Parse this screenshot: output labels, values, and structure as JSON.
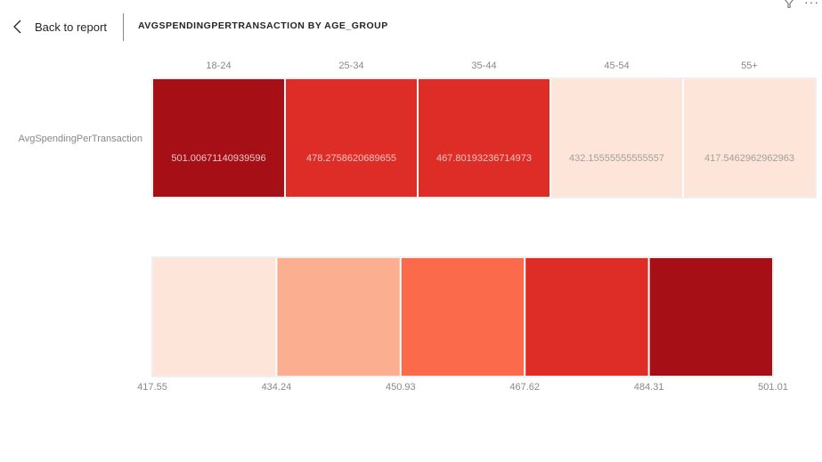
{
  "header": {
    "back_label": "Back to report",
    "title": "AVGSPENDINGPERTRANSACTION BY AGE_GROUP",
    "back_icon": "chevron-left-icon",
    "filter_icon": "filter-icon",
    "more_icon": "more-options-icon",
    "more_glyph": "···"
  },
  "chart_data": [
    {
      "type": "heatmap",
      "title": "",
      "row_label": "AvgSpendingPerTransaction",
      "categories": [
        "18-24",
        "25-34",
        "35-44",
        "45-54",
        "55+"
      ],
      "values": [
        501.00671140939596,
        478.2758620689655,
        467.80193236714973,
        432.15555555555557,
        417.5462962962963
      ],
      "value_labels": [
        "501.00671140939596",
        "478.2758620689655",
        "467.80193236714973",
        "432.15555555555557",
        "417.5462962962963"
      ],
      "cell_colors": [
        "#a50f15",
        "#de2d26",
        "#de2d26",
        "#fee5d9",
        "#fee5d9"
      ],
      "label_colors": [
        "#e8c9c9",
        "#f2c3c0",
        "#f2c3c0",
        "#a19f9d",
        "#a19f9d"
      ]
    },
    {
      "type": "heatmap",
      "title": "",
      "legend": true,
      "bins": [
        417.55,
        434.24,
        450.93,
        467.62,
        484.31,
        501.01
      ],
      "bin_labels": [
        "417.55",
        "434.24",
        "450.93",
        "467.62",
        "484.31",
        "501.01"
      ],
      "colors": [
        "#fee5d9",
        "#fcae91",
        "#fb6a4a",
        "#de2d26",
        "#a50f15"
      ]
    }
  ]
}
